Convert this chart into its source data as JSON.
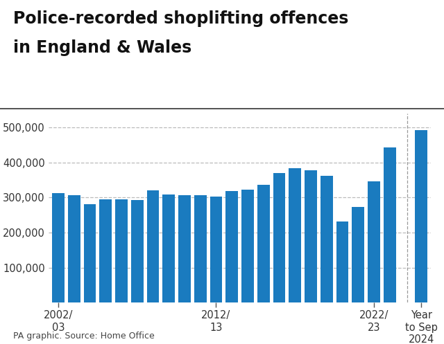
{
  "title_line1": "Police-recorded shoplifting offences",
  "title_line2": "in England & Wales",
  "source": "PA graphic. Source: Home Office",
  "bar_color": "#1a7bbf",
  "background_color": "#ffffff",
  "values": [
    313000,
    307000,
    282000,
    296000,
    295000,
    293000,
    320000,
    309000,
    307000,
    307000,
    302000,
    319000,
    323000,
    336000,
    370000,
    383000,
    378000,
    362000,
    231000,
    274000,
    346000,
    443000,
    492000
  ],
  "ylim": [
    0,
    540000
  ],
  "yticks": [
    100000,
    200000,
    300000,
    400000,
    500000
  ],
  "ytick_labels": [
    "100,000",
    "200,000",
    "300,000",
    "400,000",
    "500,000"
  ],
  "grid_color": "#bbbbbb",
  "title_fontsize": 17,
  "source_fontsize": 9,
  "axis_fontsize": 10.5,
  "bar_color_last": "#1a7bbf"
}
